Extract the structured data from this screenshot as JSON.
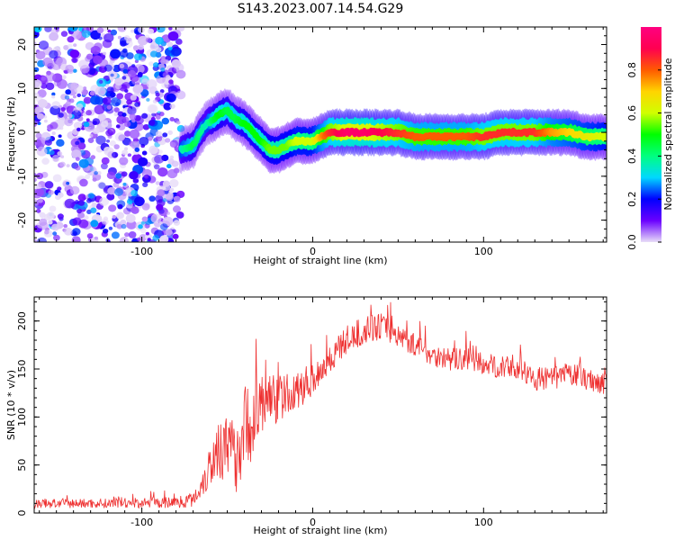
{
  "figure_title": "S143.2023.007.14.54.G29",
  "chart_data": [
    {
      "type": "heatmap",
      "title": "",
      "xlabel": "Height of straight line (km)",
      "ylabel": "Frequency (Hz)",
      "xlim": [
        -163,
        172
      ],
      "ylim": [
        -25,
        24
      ],
      "xticks": [
        -100,
        0,
        100
      ],
      "yticks": [
        -20,
        -10,
        0,
        10,
        20
      ],
      "colorbar": {
        "label": "Normalized spectral amplitude",
        "range": [
          0.0,
          1.0
        ],
        "ticks": [
          "0.0",
          "0.2",
          "0.4",
          "0.6",
          "0.8"
        ],
        "colors": [
          "#e8ddf8",
          "#6a00ff",
          "#0000ff",
          "#00d8ff",
          "#00ff80",
          "#00ff00",
          "#d0ff00",
          "#ffd400",
          "#ff5a00",
          "#ff0050",
          "#ff0080"
        ]
      },
      "noise_region_x": [
        -163,
        -77
      ],
      "ridge": {
        "x": [
          -77,
          -74,
          -70,
          -66,
          -62,
          -58,
          -55,
          -50,
          -45,
          -40,
          -35,
          -30,
          -25,
          -20,
          -15,
          -10,
          -5,
          0,
          5,
          10,
          15,
          20,
          30,
          40,
          50,
          60,
          70,
          80,
          90,
          100,
          110,
          120,
          130,
          140,
          150,
          160,
          172
        ],
        "y": [
          -4,
          -3.5,
          -3,
          0,
          2,
          3,
          4,
          5,
          3,
          2,
          0,
          -2,
          -4,
          -4,
          -3,
          -2,
          -2,
          -2,
          -1,
          0,
          0,
          0,
          0,
          0,
          0,
          -1,
          -1,
          -1,
          -1,
          -1,
          0,
          0,
          0,
          0,
          0,
          -1,
          -1
        ],
        "amplitude": [
          0.35,
          0.4,
          0.45,
          0.4,
          0.35,
          0.45,
          0.5,
          0.45,
          0.45,
          0.5,
          0.5,
          0.5,
          0.55,
          0.55,
          0.55,
          0.6,
          0.6,
          0.6,
          0.75,
          0.85,
          0.9,
          0.95,
          0.95,
          0.9,
          0.85,
          0.8,
          0.8,
          0.8,
          0.8,
          0.85,
          0.85,
          0.85,
          0.85,
          0.75,
          0.7,
          0.65,
          0.6
        ]
      }
    },
    {
      "type": "line",
      "title": "",
      "xlabel": "Height of straight line (km)",
      "ylabel": "SNR (10 * v/v)",
      "xlim": [
        -163,
        172
      ],
      "ylim": [
        0,
        225
      ],
      "xticks": [
        -100,
        0,
        100
      ],
      "yticks": [
        0,
        50,
        100,
        150,
        200
      ],
      "color": "#ee3030",
      "envelope": {
        "x": [
          -163,
          -120,
          -80,
          -70,
          -65,
          -60,
          -55,
          -50,
          -45,
          -40,
          -35,
          -30,
          -25,
          -20,
          -10,
          0,
          10,
          20,
          30,
          40,
          50,
          60,
          70,
          80,
          90,
          100,
          110,
          120,
          130,
          140,
          150,
          160,
          172
        ],
        "mean": [
          10,
          10,
          11,
          14,
          30,
          50,
          70,
          65,
          60,
          90,
          95,
          110,
          120,
          120,
          125,
          140,
          160,
          180,
          190,
          195,
          185,
          175,
          165,
          160,
          160,
          155,
          152,
          150,
          140,
          140,
          145,
          140,
          135
        ],
        "spread": [
          5,
          5,
          6,
          8,
          15,
          25,
          35,
          35,
          40,
          45,
          40,
          35,
          30,
          25,
          20,
          18,
          15,
          15,
          15,
          14,
          12,
          12,
          12,
          12,
          12,
          12,
          12,
          12,
          12,
          12,
          12,
          12,
          12
        ]
      }
    }
  ]
}
